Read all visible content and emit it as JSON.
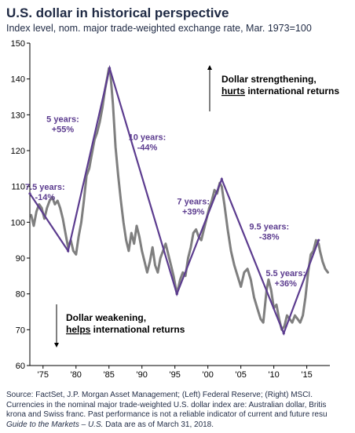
{
  "header": {
    "title": "U.S. dollar in historical perspective",
    "subtitle": "Index level, nom. major trade-weighted exchange rate, Mar. 1973=100"
  },
  "footer": {
    "line1": "Source: FactSet, J.P. Morgan Asset Management; (Left) Federal Reserve; (Right) MSCI.",
    "line2": "Currencies in the nominal major trade-weighted U.S. dollar index are: Australian dollar, Britis",
    "line3": "krona and Swiss franc. Past performance is not a reliable indicator of current and future resu",
    "line4_italic": "Guide to the Markets – U.S.",
    "line4_rest": " Data are as of March 31, 2018."
  },
  "chart_data": {
    "type": "line",
    "title": "U.S. dollar in historical perspective",
    "subtitle": "Index level, nom. major trade-weighted exchange rate, Mar. 1973=100",
    "xlabel": "",
    "ylabel": "",
    "xlim": [
      1973,
      2018.5
    ],
    "ylim": [
      60,
      150
    ],
    "yticks": [
      60,
      70,
      80,
      90,
      100,
      110,
      120,
      130,
      140,
      150
    ],
    "xticks": [
      {
        "value": 1975,
        "label": "'75"
      },
      {
        "value": 1980,
        "label": "'80"
      },
      {
        "value": 1985,
        "label": "'85"
      },
      {
        "value": 1990,
        "label": "'90"
      },
      {
        "value": 1995,
        "label": "'95"
      },
      {
        "value": 2000,
        "label": "'00"
      },
      {
        "value": 2005,
        "label": "'05"
      },
      {
        "value": 2010,
        "label": "'10"
      },
      {
        "value": 2015,
        "label": "'15"
      }
    ],
    "grid": false,
    "legend": "none",
    "colors": {
      "index_line": "#7f7f7f",
      "trend_line": "#5c3c8f",
      "annotation_text": "#5c3c8f",
      "axis": "#000000"
    },
    "series": [
      {
        "x": [
          1973.2,
          1973.6,
          1974.0,
          1974.4,
          1974.8,
          1975.2,
          1975.6,
          1976.0,
          1976.4,
          1976.8,
          1977.2,
          1977.6,
          1978.0,
          1978.4,
          1978.8,
          1979.2,
          1979.6,
          1980.0,
          1980.4,
          1980.8,
          1981.2,
          1981.6,
          1982.0,
          1982.4,
          1982.8,
          1983.2,
          1983.6,
          1984.0,
          1984.4,
          1984.8,
          1985.0,
          1985.2,
          1985.6,
          1986.0,
          1986.4,
          1986.8,
          1987.2,
          1987.6,
          1988.0,
          1988.4,
          1988.8,
          1989.2,
          1989.6,
          1990.0,
          1990.4,
          1990.8,
          1991.2,
          1991.6,
          1992.0,
          1992.4,
          1992.8,
          1993.2,
          1993.6,
          1994.0,
          1994.4,
          1994.8,
          1995.3,
          1995.8,
          1996.2,
          1996.6,
          1997.0,
          1997.4,
          1997.8,
          1998.2,
          1998.6,
          1999.0,
          1999.4,
          1999.8,
          2000.2,
          2000.6,
          2001.0,
          2001.4,
          2001.8,
          2002.1,
          2002.5,
          2003.0,
          2003.5,
          2004.0,
          2004.5,
          2005.0,
          2005.5,
          2006.0,
          2006.5,
          2007.0,
          2007.5,
          2008.0,
          2008.4,
          2008.9,
          2009.2,
          2009.6,
          2010.0,
          2010.4,
          2010.8,
          2011.2,
          2011.6,
          2012.0,
          2012.4,
          2012.8,
          2013.2,
          2013.6,
          2014.0,
          2014.4,
          2014.8,
          2015.2,
          2015.6,
          2016.0,
          2016.4,
          2016.8,
          2017.0,
          2017.4,
          2017.8,
          2018.2
        ],
        "values": [
          102,
          99,
          103,
          105,
          104,
          101,
          104,
          106,
          107,
          105,
          106,
          104,
          101,
          97,
          93,
          95,
          92,
          91,
          96,
          100,
          106,
          113,
          115,
          119,
          123,
          125,
          128,
          132,
          137,
          141,
          143,
          142,
          133,
          121,
          113,
          106,
          100,
          95,
          92,
          97,
          94,
          99,
          96,
          92,
          89,
          86,
          89,
          93,
          88,
          86,
          90,
          92,
          94,
          91,
          88,
          85,
          80,
          84,
          86,
          85,
          90,
          93,
          97,
          98,
          96,
          95,
          98,
          101,
          104,
          106,
          109,
          108,
          111,
          110,
          105,
          98,
          92,
          88,
          85,
          82,
          86,
          87,
          84,
          79,
          76,
          73,
          72,
          81,
          84,
          81,
          76,
          77,
          73,
          70,
          71,
          74,
          73,
          72,
          74,
          73,
          72,
          74,
          79,
          86,
          91,
          92,
          95,
          94,
          92,
          89,
          87,
          86
        ]
      }
    ],
    "trend_points": [
      {
        "x": 1973.0,
        "y": 108
      },
      {
        "x": 1978.8,
        "y": 92
      },
      {
        "x": 1985.1,
        "y": 143
      },
      {
        "x": 1995.3,
        "y": 80
      },
      {
        "x": 2002.1,
        "y": 112
      },
      {
        "x": 2011.5,
        "y": 69
      },
      {
        "x": 2016.8,
        "y": 95
      }
    ],
    "annotations": [
      {
        "label": "7.5 years:",
        "pct": "-14%",
        "x": 1975.3,
        "y": 109
      },
      {
        "label": "5 years:",
        "pct": "+55%",
        "x": 1978.0,
        "y": 128
      },
      {
        "label": "10 years:",
        "pct": "-44%",
        "x": 1990.8,
        "y": 123
      },
      {
        "label": "7 years:",
        "pct": "+39%",
        "x": 1997.8,
        "y": 105
      },
      {
        "label": "9.5 years:",
        "pct": "-38%",
        "x": 2009.3,
        "y": 98
      },
      {
        "label": "5.5 years:",
        "pct": "+36%",
        "x": 2011.8,
        "y": 85
      }
    ],
    "callouts": {
      "up": {
        "line1": "Dollar strengthening,",
        "bold_underlined": "hurts",
        "rest": " international returns"
      },
      "down": {
        "line1": "Dollar weakening,",
        "bold_underlined": "helps",
        "rest": " international returns"
      }
    }
  }
}
